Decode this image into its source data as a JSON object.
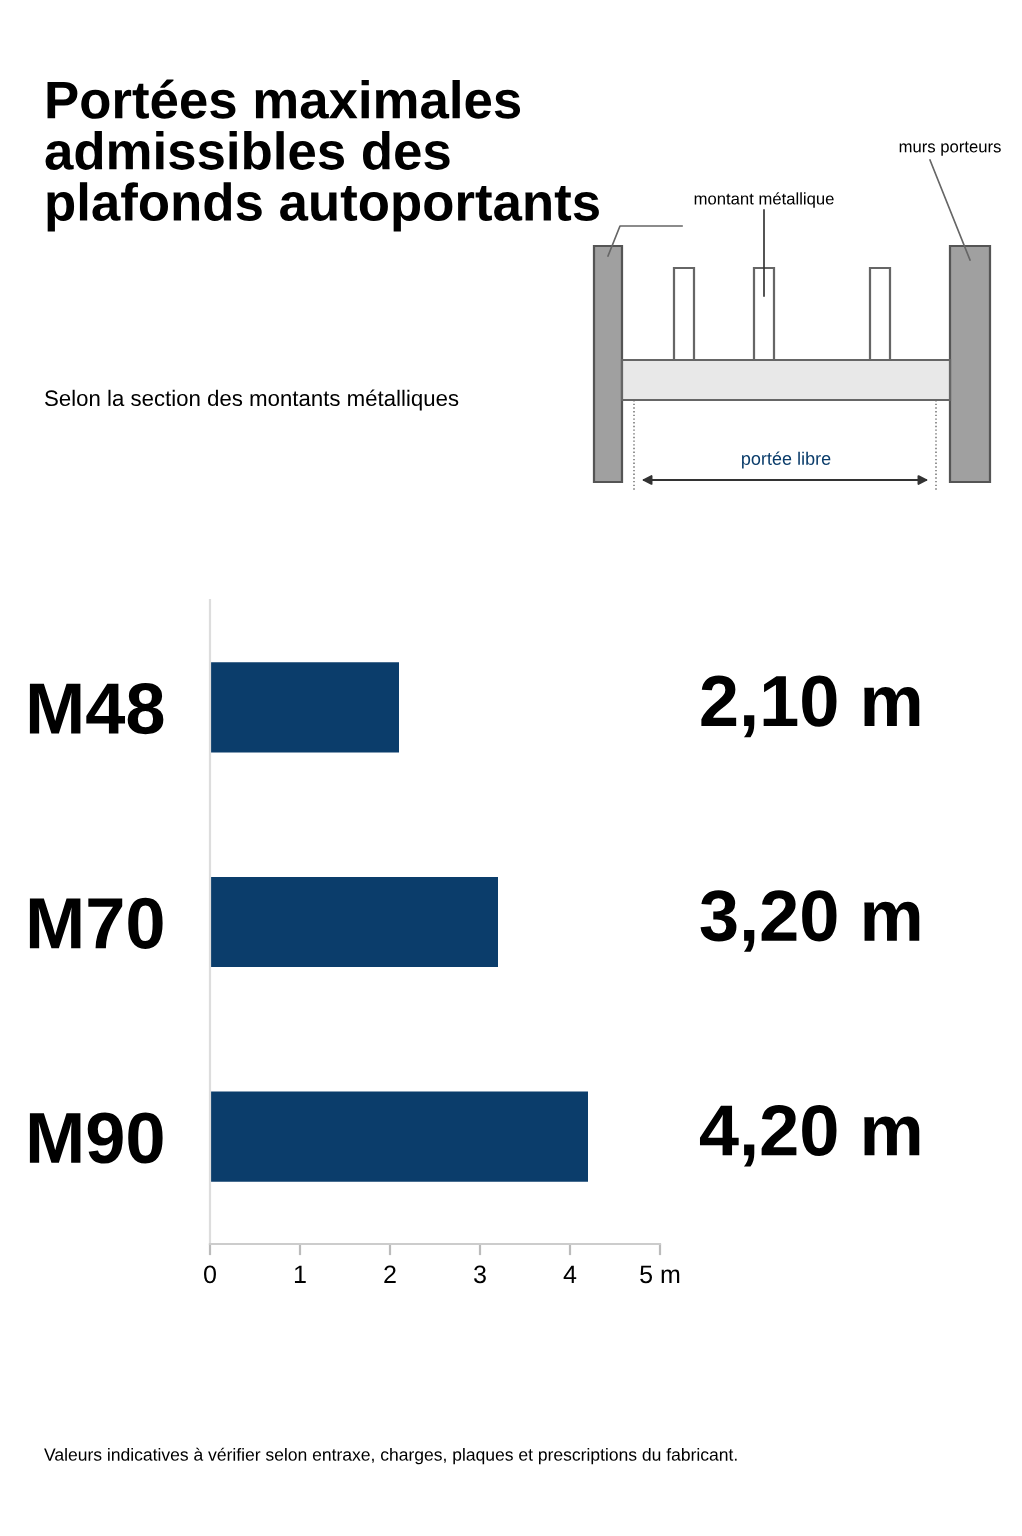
{
  "chart_data": {
    "type": "bar",
    "orientation": "horizontal",
    "title": "Portées maximales\nadmissibles des\nplafonds autoportants",
    "subtitle": "Selon la section des montants métalliques",
    "categories": [
      "M48",
      "M70",
      "M90"
    ],
    "values": [
      2.1,
      3.2,
      4.2
    ],
    "value_labels": [
      "2,10 m",
      "3,20 m",
      "4,20 m"
    ],
    "color": "#0b3d6b",
    "xlim": [
      0,
      5
    ],
    "xticks": [
      0,
      1,
      2,
      3,
      4,
      {
        "value": 5,
        "label": "5 m"
      }
    ],
    "grid": false,
    "annotations": [
      "murs porteurs",
      "montant métallique",
      "portée libre",
      "Valeurs indicatives à vérifier selon entraxe, charges, plaques et prescriptions du fabricant."
    ]
  }
}
